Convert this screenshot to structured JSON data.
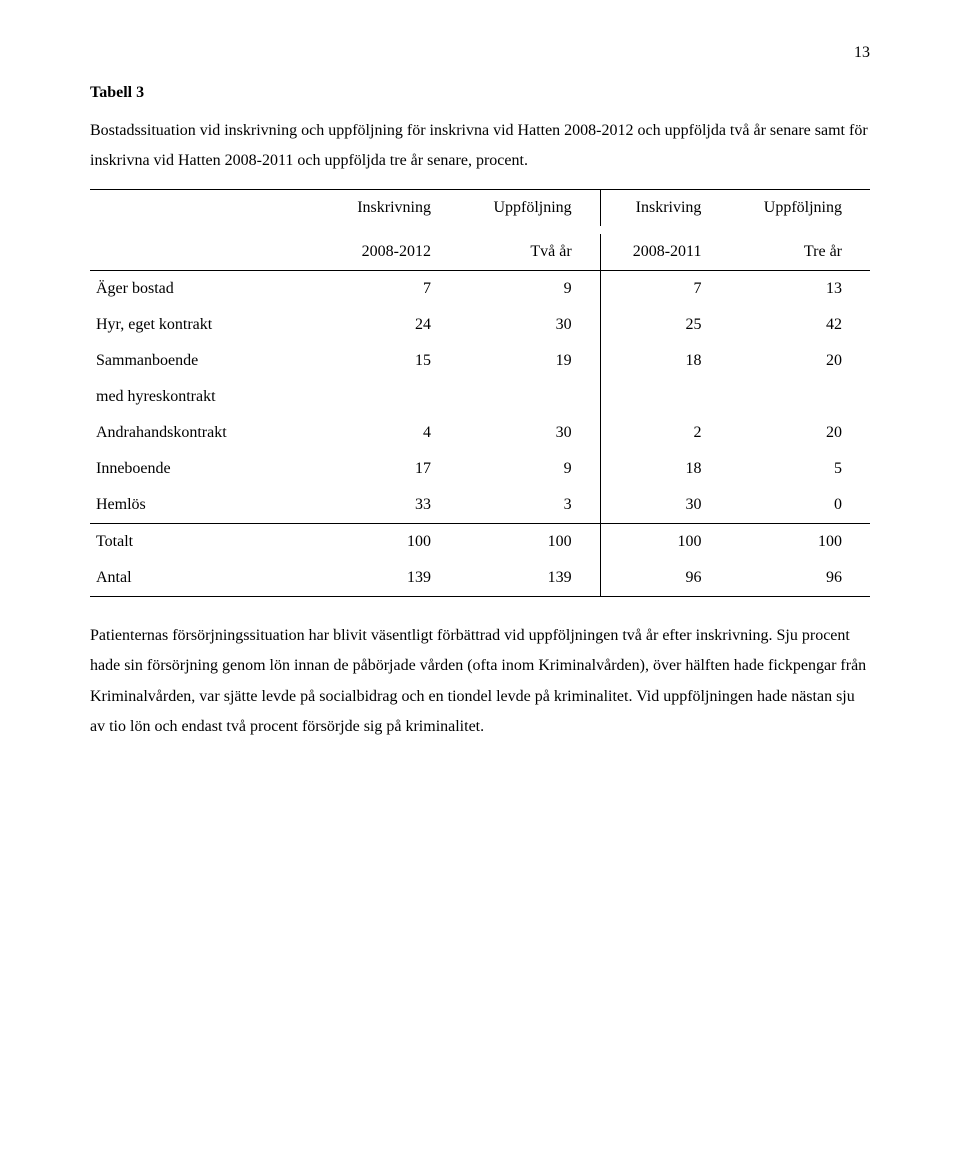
{
  "page_number": "13",
  "table_label": "Tabell 3",
  "caption": "Bostadssituation vid inskrivning och uppföljning för inskrivna vid Hatten 2008-2012 och uppföljda två år senare samt för inskrivna vid Hatten 2008-2011 och uppföljda tre år senare, procent.",
  "header1": {
    "c1": "Inskrivning",
    "c2": "Uppföljning",
    "c3": "Inskriving",
    "c4": "Uppföljning"
  },
  "header2": {
    "c1": "2008-2012",
    "c2": "Två år",
    "c3": "2008-2011",
    "c4": "Tre år"
  },
  "rows": [
    {
      "label": "Äger bostad",
      "c1": "7",
      "c2": "9",
      "c3": "7",
      "c4": "13"
    },
    {
      "label": "Hyr, eget kontrakt",
      "c1": "24",
      "c2": "30",
      "c3": "25",
      "c4": "42"
    },
    {
      "label": "Sammanboende",
      "c1": "15",
      "c2": "19",
      "c3": "18",
      "c4": "20"
    },
    {
      "label": "med hyreskontrakt",
      "c1": "",
      "c2": "",
      "c3": "",
      "c4": ""
    },
    {
      "label": "Andrahandskontrakt",
      "c1": "4",
      "c2": "30",
      "c3": "2",
      "c4": "20"
    },
    {
      "label": "Inneboende",
      "c1": "17",
      "c2": "9",
      "c3": "18",
      "c4": "5"
    },
    {
      "label": "Hemlös",
      "c1": "33",
      "c2": "3",
      "c3": "30",
      "c4": "0"
    }
  ],
  "total_row": {
    "label": "Totalt",
    "c1": "100",
    "c2": "100",
    "c3": "100",
    "c4": "100"
  },
  "antal_row": {
    "label": "Antal",
    "c1": "139",
    "c2": "139",
    "c3": "96",
    "c4": "96"
  },
  "body_text": "Patienternas försörjningssituation har blivit väsentligt förbättrad vid uppföljningen två år efter inskrivning. Sju procent hade sin försörjning genom lön innan de påbörjade vården (ofta inom Kriminalvården), över hälften hade fickpengar från Kriminalvården, var sjätte levde på socialbidrag och en tiondel levde på kriminalitet. Vid uppföljningen hade nästan sju av tio lön och endast två procent försörjde sig på kriminalitet.",
  "col_widths": {
    "label": "30%",
    "num": "17.5%"
  }
}
